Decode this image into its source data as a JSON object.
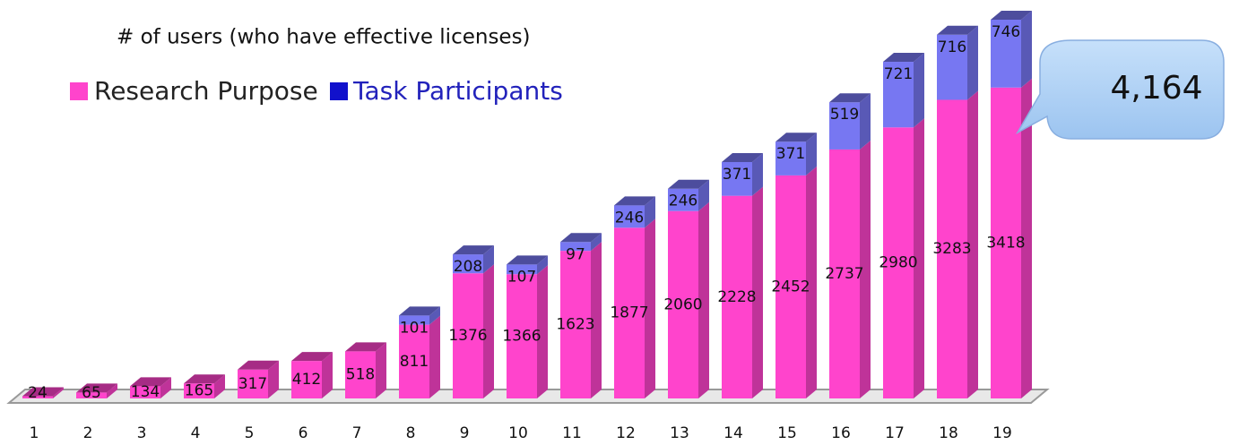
{
  "chart_data": {
    "type": "bar",
    "stacked": true,
    "title": "# of users (who have effective licenses)",
    "annotation": "4,164",
    "categories": [
      "1",
      "2",
      "3",
      "4",
      "5",
      "6",
      "7",
      "8",
      "9",
      "10",
      "11",
      "12",
      "13",
      "14",
      "15",
      "16",
      "17",
      "18",
      "19"
    ],
    "series": [
      {
        "name": "Research Purpose",
        "color": "#ff44cc",
        "values": [
          24,
          65,
          134,
          165,
          317,
          412,
          518,
          811,
          1376,
          1366,
          1623,
          1877,
          2060,
          2228,
          2452,
          2737,
          2980,
          3283,
          3418
        ]
      },
      {
        "name": "Task Participants",
        "color": "#7777f2",
        "legend_color": "#1111cc",
        "values": [
          null,
          null,
          null,
          null,
          null,
          null,
          null,
          101,
          208,
          107,
          97,
          246,
          246,
          371,
          371,
          519,
          721,
          716,
          746
        ]
      }
    ]
  }
}
